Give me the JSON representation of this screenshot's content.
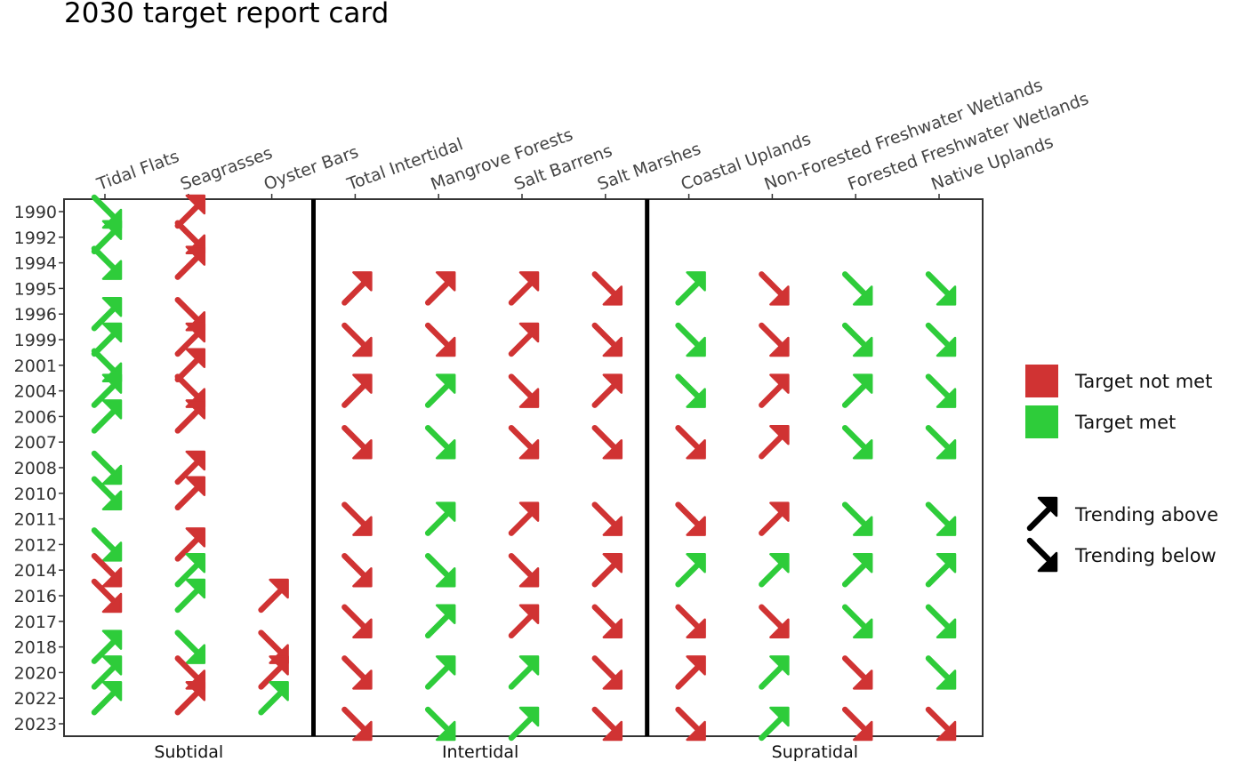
{
  "chart_data": {
    "type": "report_card_matrix",
    "title": "2030 target report card",
    "years": [
      "1990",
      "1992",
      "1994",
      "1995",
      "1996",
      "1999",
      "2001",
      "2004",
      "2006",
      "2007",
      "2008",
      "2010",
      "2011",
      "2012",
      "2014",
      "2016",
      "2017",
      "2018",
      "2020",
      "2022",
      "2023"
    ],
    "habitats": [
      "Tidal Flats",
      "Seagrasses",
      "Oyster Bars",
      "Total Intertidal",
      "Mangrove Forests",
      "Salt Barrens",
      "Salt Marshes",
      "Coastal Uplands",
      "Non-Forested Freshwater Wetlands",
      "Forested Freshwater Wetlands",
      "Native Uplands"
    ],
    "groups": [
      {
        "label": "Subtidal",
        "habitats": [
          "Tidal Flats",
          "Seagrasses",
          "Oyster Bars"
        ]
      },
      {
        "label": "Intertidal",
        "habitats": [
          "Total Intertidal",
          "Mangrove Forests",
          "Salt Barrens",
          "Salt Marshes"
        ]
      },
      {
        "label": "Supratidal",
        "habitats": [
          "Coastal Uplands",
          "Non-Forested Freshwater Wetlands",
          "Forested Freshwater Wetlands",
          "Native Uplands"
        ]
      }
    ],
    "colors": {
      "target_not_met": "#d03333",
      "target_met": "#2ecc3a",
      "neutral": "#000000"
    },
    "legend": {
      "status": [
        {
          "key": "not_met",
          "label": "Target not met"
        },
        {
          "key": "met",
          "label": "Target met"
        }
      ],
      "trend": [
        {
          "key": "up",
          "label": "Trending above"
        },
        {
          "key": "down",
          "label": "Trending below"
        }
      ]
    },
    "cells": [
      {
        "habitat": "Tidal Flats",
        "year": "1990",
        "met": true,
        "trend": "down"
      },
      {
        "habitat": "Tidal Flats",
        "year": "1992",
        "met": true,
        "trend": "up"
      },
      {
        "habitat": "Tidal Flats",
        "year": "1994",
        "met": true,
        "trend": "down"
      },
      {
        "habitat": "Tidal Flats",
        "year": "1996",
        "met": true,
        "trend": "up"
      },
      {
        "habitat": "Tidal Flats",
        "year": "1999",
        "met": true,
        "trend": "up"
      },
      {
        "habitat": "Tidal Flats",
        "year": "2001",
        "met": true,
        "trend": "down"
      },
      {
        "habitat": "Tidal Flats",
        "year": "2004",
        "met": true,
        "trend": "up"
      },
      {
        "habitat": "Tidal Flats",
        "year": "2006",
        "met": true,
        "trend": "up"
      },
      {
        "habitat": "Tidal Flats",
        "year": "2008",
        "met": true,
        "trend": "down"
      },
      {
        "habitat": "Tidal Flats",
        "year": "2010",
        "met": true,
        "trend": "down"
      },
      {
        "habitat": "Tidal Flats",
        "year": "2012",
        "met": true,
        "trend": "down"
      },
      {
        "habitat": "Tidal Flats",
        "year": "2014",
        "met": false,
        "trend": "down"
      },
      {
        "habitat": "Tidal Flats",
        "year": "2016",
        "met": false,
        "trend": "down"
      },
      {
        "habitat": "Tidal Flats",
        "year": "2018",
        "met": true,
        "trend": "up"
      },
      {
        "habitat": "Tidal Flats",
        "year": "2020",
        "met": true,
        "trend": "up"
      },
      {
        "habitat": "Tidal Flats",
        "year": "2022",
        "met": true,
        "trend": "up"
      },
      {
        "habitat": "Seagrasses",
        "year": "1990",
        "met": false,
        "trend": "up"
      },
      {
        "habitat": "Seagrasses",
        "year": "1992",
        "met": false,
        "trend": "down"
      },
      {
        "habitat": "Seagrasses",
        "year": "1994",
        "met": false,
        "trend": "up"
      },
      {
        "habitat": "Seagrasses",
        "year": "1996",
        "met": false,
        "trend": "down"
      },
      {
        "habitat": "Seagrasses",
        "year": "1999",
        "met": false,
        "trend": "up"
      },
      {
        "habitat": "Seagrasses",
        "year": "2001",
        "met": false,
        "trend": "up"
      },
      {
        "habitat": "Seagrasses",
        "year": "2004",
        "met": false,
        "trend": "down"
      },
      {
        "habitat": "Seagrasses",
        "year": "2006",
        "met": false,
        "trend": "up"
      },
      {
        "habitat": "Seagrasses",
        "year": "2008",
        "met": false,
        "trend": "up"
      },
      {
        "habitat": "Seagrasses",
        "year": "2010",
        "met": false,
        "trend": "up"
      },
      {
        "habitat": "Seagrasses",
        "year": "2012",
        "met": false,
        "trend": "up"
      },
      {
        "habitat": "Seagrasses",
        "year": "2014",
        "met": true,
        "trend": "up"
      },
      {
        "habitat": "Seagrasses",
        "year": "2016",
        "met": true,
        "trend": "up"
      },
      {
        "habitat": "Seagrasses",
        "year": "2018",
        "met": true,
        "trend": "down"
      },
      {
        "habitat": "Seagrasses",
        "year": "2020",
        "met": false,
        "trend": "down"
      },
      {
        "habitat": "Seagrasses",
        "year": "2022",
        "met": false,
        "trend": "up"
      },
      {
        "habitat": "Oyster Bars",
        "year": "2016",
        "met": false,
        "trend": "up"
      },
      {
        "habitat": "Oyster Bars",
        "year": "2018",
        "met": false,
        "trend": "down"
      },
      {
        "habitat": "Oyster Bars",
        "year": "2020",
        "met": false,
        "trend": "up"
      },
      {
        "habitat": "Oyster Bars",
        "year": "2022",
        "met": true,
        "trend": "up"
      },
      {
        "habitat": "Total Intertidal",
        "year": "1995",
        "met": false,
        "trend": "up"
      },
      {
        "habitat": "Total Intertidal",
        "year": "1999",
        "met": false,
        "trend": "down"
      },
      {
        "habitat": "Total Intertidal",
        "year": "2004",
        "met": false,
        "trend": "up"
      },
      {
        "habitat": "Total Intertidal",
        "year": "2007",
        "met": false,
        "trend": "down"
      },
      {
        "habitat": "Total Intertidal",
        "year": "2011",
        "met": false,
        "trend": "down"
      },
      {
        "habitat": "Total Intertidal",
        "year": "2014",
        "met": false,
        "trend": "down"
      },
      {
        "habitat": "Total Intertidal",
        "year": "2017",
        "met": false,
        "trend": "down"
      },
      {
        "habitat": "Total Intertidal",
        "year": "2020",
        "met": false,
        "trend": "down"
      },
      {
        "habitat": "Total Intertidal",
        "year": "2023",
        "met": false,
        "trend": "down"
      },
      {
        "habitat": "Mangrove Forests",
        "year": "1995",
        "met": false,
        "trend": "up"
      },
      {
        "habitat": "Mangrove Forests",
        "year": "1999",
        "met": false,
        "trend": "down"
      },
      {
        "habitat": "Mangrove Forests",
        "year": "2004",
        "met": true,
        "trend": "up"
      },
      {
        "habitat": "Mangrove Forests",
        "year": "2007",
        "met": true,
        "trend": "down"
      },
      {
        "habitat": "Mangrove Forests",
        "year": "2011",
        "met": true,
        "trend": "up"
      },
      {
        "habitat": "Mangrove Forests",
        "year": "2014",
        "met": true,
        "trend": "down"
      },
      {
        "habitat": "Mangrove Forests",
        "year": "2017",
        "met": true,
        "trend": "up"
      },
      {
        "habitat": "Mangrove Forests",
        "year": "2020",
        "met": true,
        "trend": "up"
      },
      {
        "habitat": "Mangrove Forests",
        "year": "2023",
        "met": true,
        "trend": "down"
      },
      {
        "habitat": "Salt Barrens",
        "year": "1995",
        "met": false,
        "trend": "up"
      },
      {
        "habitat": "Salt Barrens",
        "year": "1999",
        "met": false,
        "trend": "up"
      },
      {
        "habitat": "Salt Barrens",
        "year": "2004",
        "met": false,
        "trend": "down"
      },
      {
        "habitat": "Salt Barrens",
        "year": "2007",
        "met": false,
        "trend": "down"
      },
      {
        "habitat": "Salt Barrens",
        "year": "2011",
        "met": false,
        "trend": "up"
      },
      {
        "habitat": "Salt Barrens",
        "year": "2014",
        "met": false,
        "trend": "down"
      },
      {
        "habitat": "Salt Barrens",
        "year": "2017",
        "met": false,
        "trend": "up"
      },
      {
        "habitat": "Salt Barrens",
        "year": "2020",
        "met": true,
        "trend": "up"
      },
      {
        "habitat": "Salt Barrens",
        "year": "2023",
        "met": true,
        "trend": "up"
      },
      {
        "habitat": "Salt Marshes",
        "year": "1995",
        "met": false,
        "trend": "down"
      },
      {
        "habitat": "Salt Marshes",
        "year": "1999",
        "met": false,
        "trend": "down"
      },
      {
        "habitat": "Salt Marshes",
        "year": "2004",
        "met": false,
        "trend": "up"
      },
      {
        "habitat": "Salt Marshes",
        "year": "2007",
        "met": false,
        "trend": "down"
      },
      {
        "habitat": "Salt Marshes",
        "year": "2011",
        "met": false,
        "trend": "down"
      },
      {
        "habitat": "Salt Marshes",
        "year": "2014",
        "met": false,
        "trend": "up"
      },
      {
        "habitat": "Salt Marshes",
        "year": "2017",
        "met": false,
        "trend": "down"
      },
      {
        "habitat": "Salt Marshes",
        "year": "2020",
        "met": false,
        "trend": "down"
      },
      {
        "habitat": "Salt Marshes",
        "year": "2023",
        "met": false,
        "trend": "down"
      },
      {
        "habitat": "Coastal Uplands",
        "year": "1995",
        "met": true,
        "trend": "up"
      },
      {
        "habitat": "Coastal Uplands",
        "year": "1999",
        "met": true,
        "trend": "down"
      },
      {
        "habitat": "Coastal Uplands",
        "year": "2004",
        "met": true,
        "trend": "down"
      },
      {
        "habitat": "Coastal Uplands",
        "year": "2007",
        "met": false,
        "trend": "down"
      },
      {
        "habitat": "Coastal Uplands",
        "year": "2011",
        "met": false,
        "trend": "down"
      },
      {
        "habitat": "Coastal Uplands",
        "year": "2014",
        "met": true,
        "trend": "up"
      },
      {
        "habitat": "Coastal Uplands",
        "year": "2017",
        "met": false,
        "trend": "down"
      },
      {
        "habitat": "Coastal Uplands",
        "year": "2020",
        "met": false,
        "trend": "up"
      },
      {
        "habitat": "Coastal Uplands",
        "year": "2023",
        "met": false,
        "trend": "down"
      },
      {
        "habitat": "Non-Forested Freshwater Wetlands",
        "year": "1995",
        "met": false,
        "trend": "down"
      },
      {
        "habitat": "Non-Forested Freshwater Wetlands",
        "year": "1999",
        "met": false,
        "trend": "down"
      },
      {
        "habitat": "Non-Forested Freshwater Wetlands",
        "year": "2004",
        "met": false,
        "trend": "up"
      },
      {
        "habitat": "Non-Forested Freshwater Wetlands",
        "year": "2007",
        "met": false,
        "trend": "up"
      },
      {
        "habitat": "Non-Forested Freshwater Wetlands",
        "year": "2011",
        "met": false,
        "trend": "up"
      },
      {
        "habitat": "Non-Forested Freshwater Wetlands",
        "year": "2014",
        "met": true,
        "trend": "up"
      },
      {
        "habitat": "Non-Forested Freshwater Wetlands",
        "year": "2017",
        "met": false,
        "trend": "down"
      },
      {
        "habitat": "Non-Forested Freshwater Wetlands",
        "year": "2020",
        "met": true,
        "trend": "up"
      },
      {
        "habitat": "Non-Forested Freshwater Wetlands",
        "year": "2023",
        "met": true,
        "trend": "up"
      },
      {
        "habitat": "Forested Freshwater Wetlands",
        "year": "1995",
        "met": true,
        "trend": "down"
      },
      {
        "habitat": "Forested Freshwater Wetlands",
        "year": "1999",
        "met": true,
        "trend": "down"
      },
      {
        "habitat": "Forested Freshwater Wetlands",
        "year": "2004",
        "met": true,
        "trend": "up"
      },
      {
        "habitat": "Forested Freshwater Wetlands",
        "year": "2007",
        "met": true,
        "trend": "down"
      },
      {
        "habitat": "Forested Freshwater Wetlands",
        "year": "2011",
        "met": true,
        "trend": "down"
      },
      {
        "habitat": "Forested Freshwater Wetlands",
        "year": "2014",
        "met": true,
        "trend": "up"
      },
      {
        "habitat": "Forested Freshwater Wetlands",
        "year": "2017",
        "met": true,
        "trend": "down"
      },
      {
        "habitat": "Forested Freshwater Wetlands",
        "year": "2020",
        "met": false,
        "trend": "down"
      },
      {
        "habitat": "Forested Freshwater Wetlands",
        "year": "2023",
        "met": false,
        "trend": "down"
      },
      {
        "habitat": "Native Uplands",
        "year": "1995",
        "met": true,
        "trend": "down"
      },
      {
        "habitat": "Native Uplands",
        "year": "1999",
        "met": true,
        "trend": "down"
      },
      {
        "habitat": "Native Uplands",
        "year": "2004",
        "met": true,
        "trend": "down"
      },
      {
        "habitat": "Native Uplands",
        "year": "2007",
        "met": true,
        "trend": "down"
      },
      {
        "habitat": "Native Uplands",
        "year": "2011",
        "met": true,
        "trend": "down"
      },
      {
        "habitat": "Native Uplands",
        "year": "2014",
        "met": true,
        "trend": "up"
      },
      {
        "habitat": "Native Uplands",
        "year": "2017",
        "met": true,
        "trend": "down"
      },
      {
        "habitat": "Native Uplands",
        "year": "2020",
        "met": true,
        "trend": "down"
      },
      {
        "habitat": "Native Uplands",
        "year": "2023",
        "met": false,
        "trend": "down"
      }
    ]
  }
}
